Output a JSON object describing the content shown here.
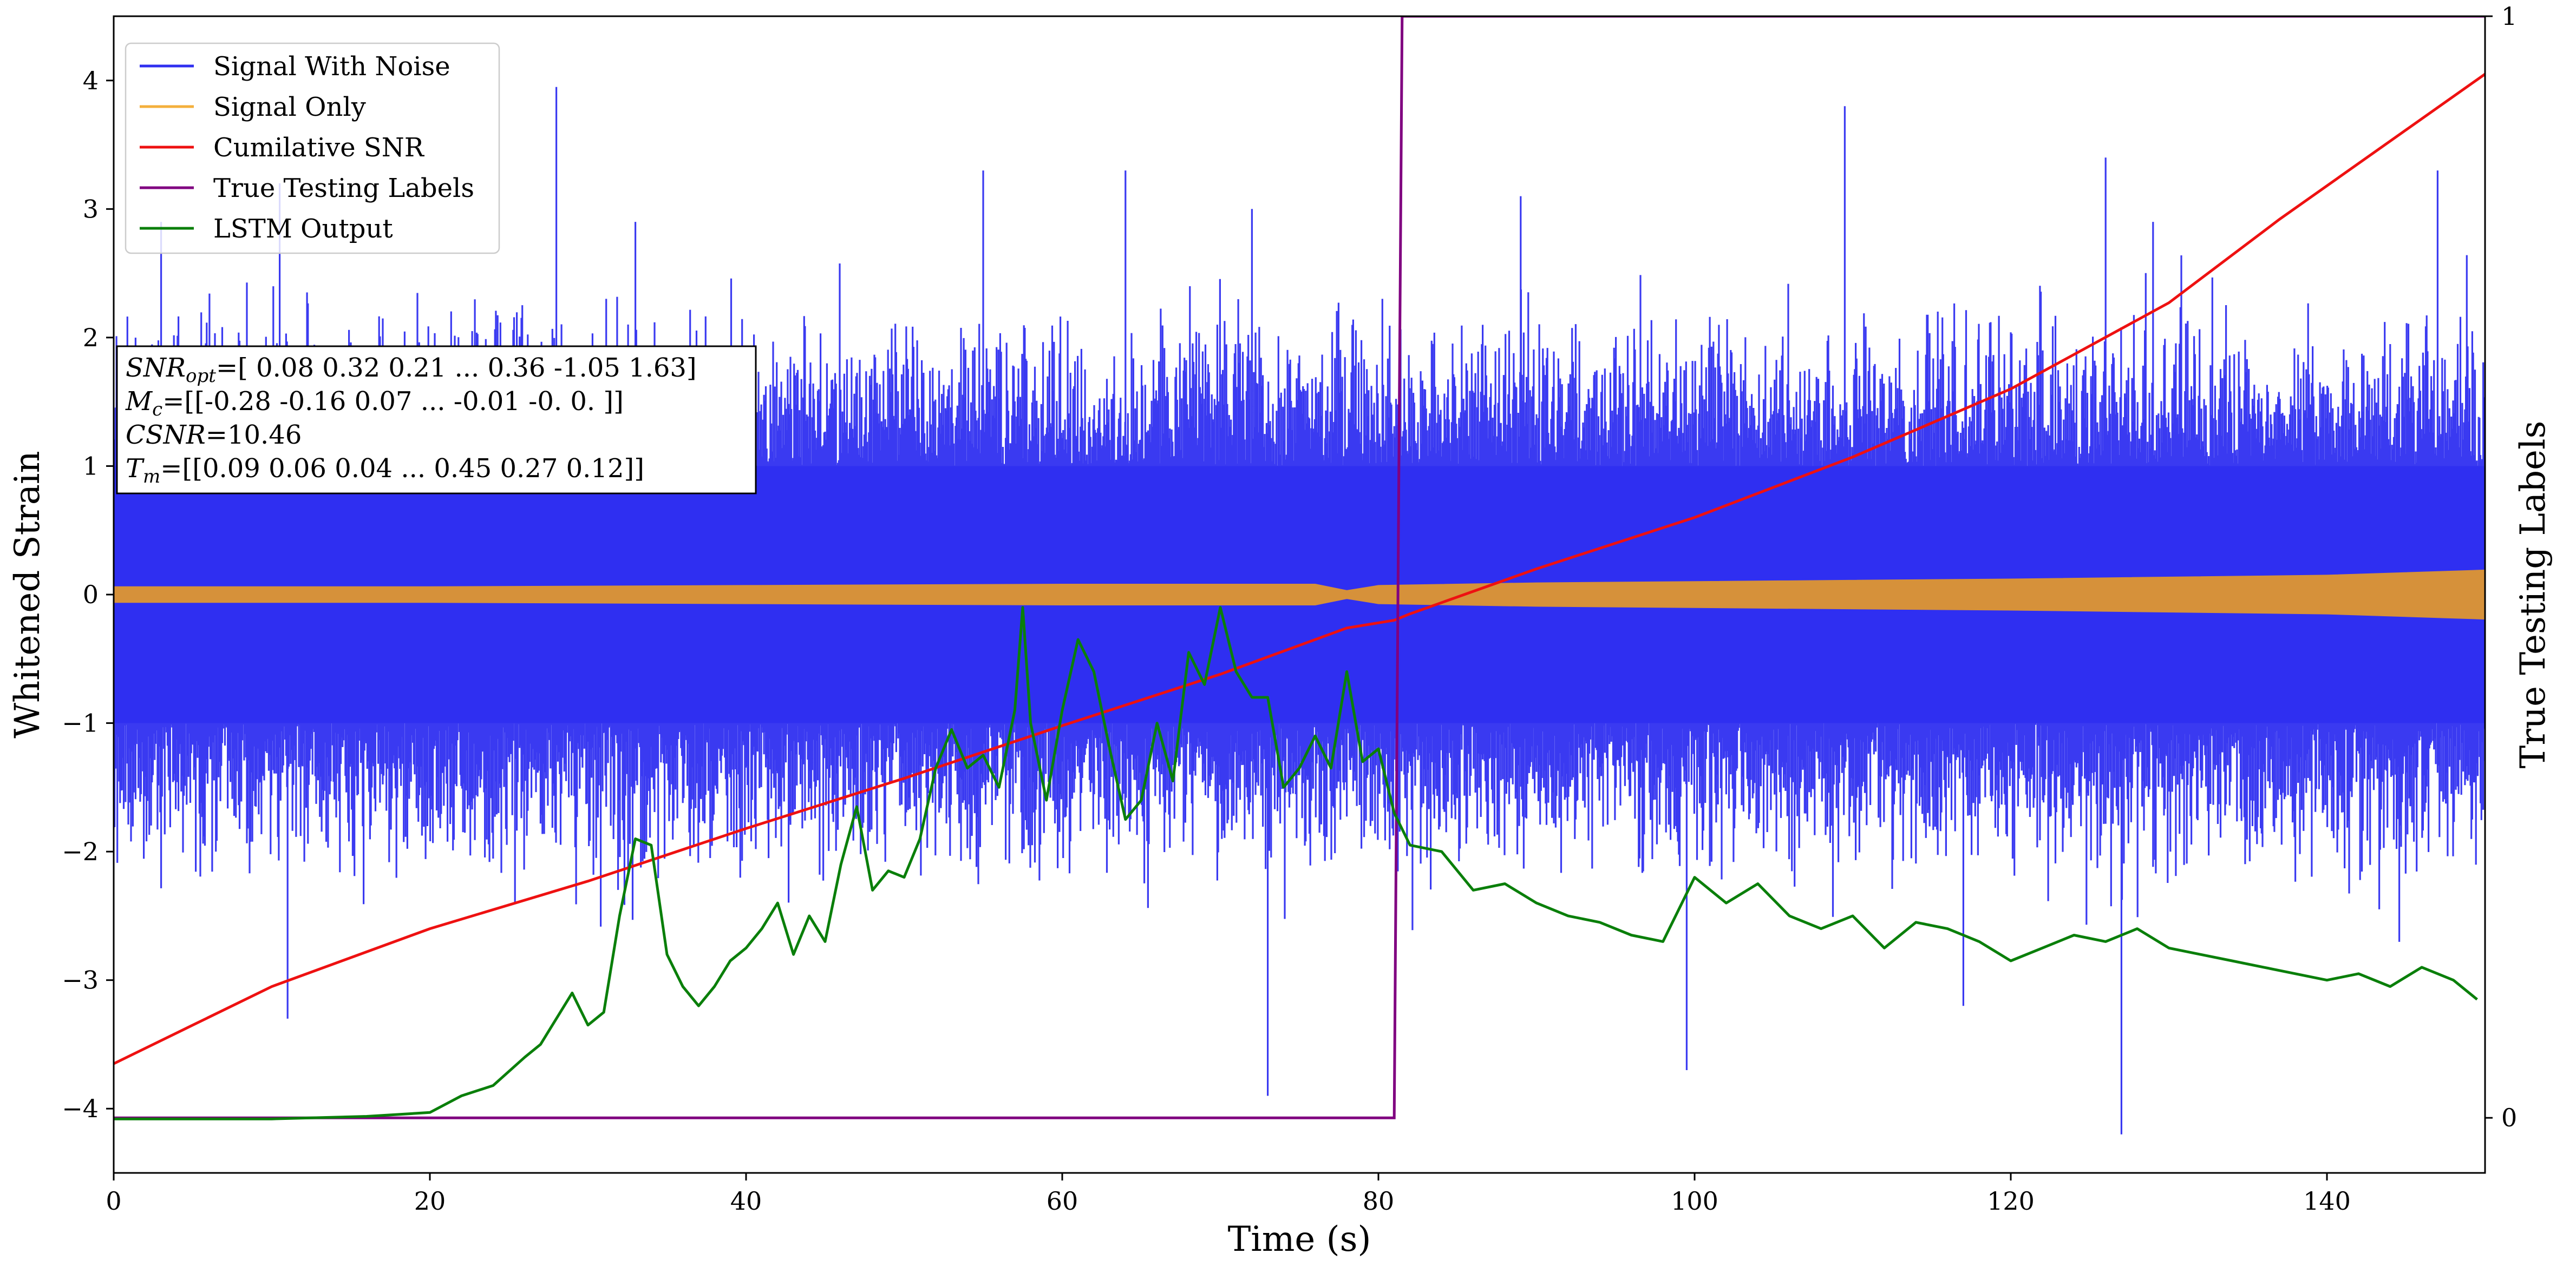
{
  "chart_data": {
    "type": "line",
    "xlabel": "Time (s)",
    "ylabel": "Whitened Strain",
    "y2label": "True Testing Labels",
    "xlim": [
      0,
      150
    ],
    "ylim": [
      -4.5,
      4.5
    ],
    "y2lim": [
      -0.05,
      1.0
    ],
    "xticks": [
      0,
      20,
      40,
      60,
      80,
      100,
      120,
      140
    ],
    "yticks": [
      -4,
      -3,
      -2,
      -1,
      0,
      1,
      2,
      3,
      4
    ],
    "y2ticks": [
      0,
      1
    ],
    "legend_position": "upper-left",
    "legend": [
      {
        "name": "Signal With Noise",
        "color": "#2f2ff0"
      },
      {
        "name": "Signal Only",
        "color": "#f4b03c"
      },
      {
        "name": "Cumilative SNR",
        "color": "#ee1111"
      },
      {
        "name": "True Testing Labels",
        "color": "#800080"
      },
      {
        "name": "LSTM Output",
        "color": "#0a7f0a"
      }
    ],
    "annotation": {
      "line1_prefix": "SNR",
      "line1_sub": "opt",
      "line1_value": "=[ 0.08  0.32  0.21 ...  0.36 -1.05  1.63]",
      "line2_prefix": "M",
      "line2_sub": "c",
      "line2_value": "=[[-0.28 -0.16  0.07 ... -0.01 -0.    0.  ]]",
      "line3_prefix": "CSNR",
      "line3_value": "=10.46",
      "line4_prefix": "T",
      "line4_sub": "m",
      "line4_value": "=[[0.09 0.06 0.04 ... 0.45 0.27 0.12]]"
    },
    "series": [
      {
        "name": "Signal With Noise",
        "band": {
          "core_upper": 1.0,
          "core_lower": -1.0,
          "typical_peak": 2.0,
          "max": 3.95,
          "min": -4.2
        },
        "notable_spikes": [
          [
            3,
            2.9
          ],
          [
            10.5,
            3.2
          ],
          [
            28,
            3.95
          ],
          [
            33,
            2.9
          ],
          [
            55,
            3.3
          ],
          [
            64,
            3.3
          ],
          [
            72,
            3.0
          ],
          [
            89,
            3.1
          ],
          [
            109.5,
            3.8
          ],
          [
            126,
            3.4
          ],
          [
            129,
            2.9
          ],
          [
            147,
            3.3
          ],
          [
            73,
            -3.9
          ],
          [
            99.5,
            -3.7
          ],
          [
            117,
            -3.2
          ],
          [
            127,
            -4.2
          ],
          [
            11,
            -3.3
          ]
        ]
      },
      {
        "name": "Signal Only",
        "envelope_x": [
          0,
          20,
          40,
          60,
          76,
          78,
          80,
          90,
          100,
          120,
          140,
          150
        ],
        "envelope_y": [
          0.06,
          0.06,
          0.07,
          0.08,
          0.08,
          0.03,
          0.07,
          0.09,
          0.1,
          0.12,
          0.15,
          0.19
        ]
      },
      {
        "name": "Cumilative SNR",
        "x": [
          0,
          5,
          10,
          20,
          30,
          40,
          50,
          60,
          70,
          78,
          81,
          82,
          90,
          100,
          110,
          120,
          130,
          137,
          150
        ],
        "y": [
          -3.65,
          -3.35,
          -3.05,
          -2.6,
          -2.23,
          -1.82,
          -1.43,
          -1.02,
          -0.62,
          -0.26,
          -0.2,
          -0.15,
          0.2,
          0.6,
          1.07,
          1.6,
          2.27,
          2.92,
          4.05
        ]
      },
      {
        "name": "True Testing Labels",
        "x": [
          0,
          81,
          81.5,
          150
        ],
        "y": [
          0,
          0,
          1,
          1
        ]
      },
      {
        "name": "LSTM Output",
        "x": [
          0,
          10,
          16,
          20,
          22,
          24,
          26,
          27,
          29,
          30,
          31,
          32,
          33,
          34,
          35,
          36,
          37,
          38,
          39,
          40,
          41,
          42,
          43,
          44,
          45,
          46,
          47,
          48,
          49,
          50,
          51,
          52,
          53,
          54,
          55,
          56,
          57,
          57.5,
          58,
          59,
          60,
          61,
          62,
          63,
          64,
          65,
          66,
          67,
          68,
          69,
          70,
          71,
          72,
          73,
          74,
          75,
          76,
          77,
          78,
          79,
          80,
          81,
          82,
          84,
          86,
          88,
          90,
          92,
          94,
          96,
          98,
          100,
          102,
          104,
          106,
          108,
          110,
          112,
          114,
          116,
          118,
          120,
          122,
          124,
          126,
          128,
          130,
          132,
          134,
          136,
          138,
          140,
          142,
          144,
          146,
          148,
          149.5
        ],
        "y": [
          -4.08,
          -4.08,
          -4.06,
          -4.03,
          -3.9,
          -3.82,
          -3.6,
          -3.5,
          -3.1,
          -3.35,
          -3.25,
          -2.5,
          -1.9,
          -1.95,
          -2.8,
          -3.05,
          -3.2,
          -3.05,
          -2.85,
          -2.75,
          -2.6,
          -2.4,
          -2.8,
          -2.5,
          -2.7,
          -2.1,
          -1.65,
          -2.3,
          -2.15,
          -2.2,
          -1.9,
          -1.35,
          -1.05,
          -1.35,
          -1.25,
          -1.5,
          -0.9,
          -0.1,
          -1.0,
          -1.6,
          -0.9,
          -0.35,
          -0.6,
          -1.2,
          -1.75,
          -1.6,
          -1.0,
          -1.45,
          -0.45,
          -0.7,
          -0.1,
          -0.6,
          -0.8,
          -0.8,
          -1.5,
          -1.35,
          -1.1,
          -1.35,
          -0.6,
          -1.3,
          -1.2,
          -1.7,
          -1.95,
          -2.0,
          -2.3,
          -2.25,
          -2.4,
          -2.5,
          -2.55,
          -2.65,
          -2.7,
          -2.2,
          -2.4,
          -2.25,
          -2.5,
          -2.6,
          -2.5,
          -2.75,
          -2.55,
          -2.6,
          -2.7,
          -2.85,
          -2.75,
          -2.65,
          -2.7,
          -2.6,
          -2.75,
          -2.8,
          -2.85,
          -2.9,
          -2.95,
          -3.0,
          -2.95,
          -3.05,
          -2.9,
          -3.0,
          -3.15
        ]
      }
    ]
  }
}
